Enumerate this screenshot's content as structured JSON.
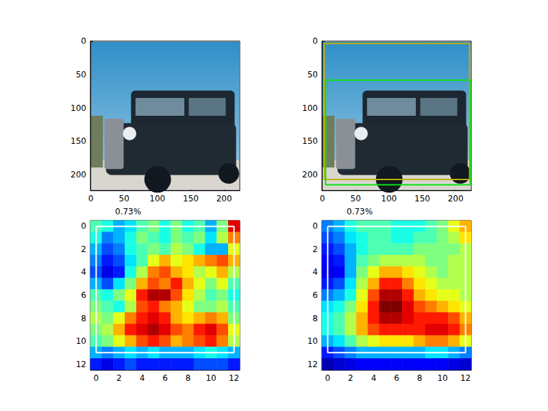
{
  "chart_data": [
    {
      "type": "image",
      "xlim": [
        -0.5,
        223.5
      ],
      "ylim": [
        223.5,
        -0.5
      ],
      "xticks": [
        0,
        50,
        100,
        150,
        200
      ],
      "yticks": [
        0,
        50,
        100,
        150,
        200
      ]
    },
    {
      "type": "image",
      "xlim": [
        -0.5,
        223.5
      ],
      "ylim": [
        223.5,
        -0.5
      ],
      "xticks": [
        0,
        50,
        100,
        150,
        200
      ],
      "yticks": [
        0,
        50,
        100,
        150,
        200
      ],
      "boxes": [
        {
          "color": "#bfb000",
          "x": [
            3,
            221,
            221,
            3,
            3
          ],
          "y": [
            3,
            3,
            207,
            207,
            3
          ]
        },
        {
          "color": "#10e010",
          "x": [
            5,
            222,
            222,
            5,
            5
          ],
          "y": [
            58,
            58,
            215,
            215,
            58
          ]
        }
      ]
    },
    {
      "type": "heatmap",
      "title": "0.73%",
      "xlim": [
        -0.5,
        12.5
      ],
      "ylim": [
        12.5,
        -0.5
      ],
      "xticks": [
        0,
        2,
        4,
        6,
        8,
        10,
        12
      ],
      "yticks": [
        0,
        2,
        4,
        6,
        8,
        10,
        12
      ],
      "color_range": [
        0,
        1
      ],
      "cells": [
        [
          0.45,
          0.4,
          0.3,
          0.35,
          0.45,
          0.5,
          0.4,
          0.5,
          0.4,
          0.45,
          0.3,
          0.5,
          0.9
        ],
        [
          0.4,
          0.25,
          0.3,
          0.4,
          0.5,
          0.45,
          0.4,
          0.5,
          0.45,
          0.5,
          0.35,
          0.55,
          0.75
        ],
        [
          0.3,
          0.2,
          0.25,
          0.4,
          0.45,
          0.5,
          0.45,
          0.55,
          0.5,
          0.4,
          0.3,
          0.3,
          0.6
        ],
        [
          0.25,
          0.15,
          0.2,
          0.35,
          0.45,
          0.6,
          0.7,
          0.6,
          0.65,
          0.7,
          0.75,
          0.8,
          0.7
        ],
        [
          0.2,
          0.1,
          0.15,
          0.4,
          0.55,
          0.75,
          0.8,
          0.7,
          0.65,
          0.55,
          0.6,
          0.7,
          0.55
        ],
        [
          0.3,
          0.2,
          0.35,
          0.5,
          0.7,
          0.8,
          0.75,
          0.85,
          0.7,
          0.6,
          0.5,
          0.6,
          0.45
        ],
        [
          0.45,
          0.4,
          0.5,
          0.6,
          0.85,
          0.95,
          0.95,
          0.8,
          0.65,
          0.55,
          0.45,
          0.5,
          0.4
        ],
        [
          0.5,
          0.45,
          0.4,
          0.55,
          0.8,
          0.85,
          0.75,
          0.7,
          0.6,
          0.5,
          0.5,
          0.55,
          0.45
        ],
        [
          0.55,
          0.5,
          0.6,
          0.75,
          0.85,
          0.9,
          0.85,
          0.7,
          0.65,
          0.7,
          0.75,
          0.7,
          0.5
        ],
        [
          0.5,
          0.55,
          0.7,
          0.85,
          0.9,
          0.95,
          0.9,
          0.8,
          0.75,
          0.85,
          0.9,
          0.8,
          0.6
        ],
        [
          0.45,
          0.5,
          0.6,
          0.7,
          0.8,
          0.85,
          0.8,
          0.7,
          0.75,
          0.8,
          0.85,
          0.75,
          0.55
        ],
        [
          0.3,
          0.25,
          0.3,
          0.35,
          0.3,
          0.35,
          0.3,
          0.3,
          0.3,
          0.35,
          0.4,
          0.35,
          0.3
        ],
        [
          0.15,
          0.1,
          0.15,
          0.2,
          0.15,
          0.15,
          0.15,
          0.15,
          0.15,
          0.2,
          0.2,
          0.2,
          0.15
        ]
      ],
      "boxes": [
        {
          "color": "#ffffff",
          "x": [
            0,
            12,
            12,
            0,
            0
          ],
          "y": [
            0,
            0,
            11,
            11,
            0
          ]
        }
      ]
    },
    {
      "type": "heatmap",
      "title": "0.73%",
      "xlim": [
        -0.5,
        12.5
      ],
      "ylim": [
        12.5,
        -0.5
      ],
      "xticks": [
        0,
        2,
        4,
        6,
        8,
        10,
        12
      ],
      "yticks": [
        0,
        2,
        4,
        6,
        8,
        10,
        12
      ],
      "color_range": [
        0,
        1
      ],
      "cells": [
        [
          0.25,
          0.3,
          0.4,
          0.45,
          0.45,
          0.45,
          0.4,
          0.4,
          0.4,
          0.45,
          0.5,
          0.6,
          0.7
        ],
        [
          0.2,
          0.25,
          0.35,
          0.4,
          0.45,
          0.45,
          0.4,
          0.4,
          0.45,
          0.45,
          0.5,
          0.55,
          0.65
        ],
        [
          0.15,
          0.2,
          0.3,
          0.4,
          0.45,
          0.45,
          0.45,
          0.45,
          0.5,
          0.5,
          0.5,
          0.5,
          0.55
        ],
        [
          0.12,
          0.15,
          0.3,
          0.45,
          0.5,
          0.55,
          0.55,
          0.55,
          0.55,
          0.5,
          0.5,
          0.55,
          0.55
        ],
        [
          0.1,
          0.12,
          0.3,
          0.5,
          0.6,
          0.7,
          0.7,
          0.65,
          0.6,
          0.55,
          0.5,
          0.55,
          0.55
        ],
        [
          0.15,
          0.2,
          0.35,
          0.55,
          0.7,
          0.85,
          0.85,
          0.75,
          0.65,
          0.6,
          0.55,
          0.55,
          0.55
        ],
        [
          0.25,
          0.3,
          0.4,
          0.6,
          0.8,
          0.95,
          0.95,
          0.85,
          0.7,
          0.65,
          0.6,
          0.6,
          0.55
        ],
        [
          0.35,
          0.4,
          0.5,
          0.65,
          0.85,
          1.0,
          1.0,
          0.9,
          0.8,
          0.75,
          0.7,
          0.65,
          0.6
        ],
        [
          0.4,
          0.45,
          0.55,
          0.7,
          0.85,
          0.95,
          0.95,
          0.9,
          0.85,
          0.85,
          0.85,
          0.8,
          0.7
        ],
        [
          0.4,
          0.45,
          0.55,
          0.7,
          0.8,
          0.85,
          0.85,
          0.85,
          0.85,
          0.9,
          0.9,
          0.85,
          0.75
        ],
        [
          0.3,
          0.35,
          0.45,
          0.55,
          0.6,
          0.65,
          0.65,
          0.65,
          0.7,
          0.75,
          0.75,
          0.7,
          0.6
        ],
        [
          0.15,
          0.2,
          0.25,
          0.3,
          0.3,
          0.3,
          0.3,
          0.3,
          0.3,
          0.35,
          0.35,
          0.3,
          0.25
        ],
        [
          0.05,
          0.08,
          0.1,
          0.12,
          0.12,
          0.12,
          0.12,
          0.12,
          0.12,
          0.12,
          0.12,
          0.1,
          0.08
        ]
      ],
      "boxes": [
        {
          "color": "#ffffff",
          "x": [
            0,
            12,
            12,
            0,
            0
          ],
          "y": [
            0,
            0,
            11,
            11,
            0
          ]
        }
      ]
    }
  ]
}
